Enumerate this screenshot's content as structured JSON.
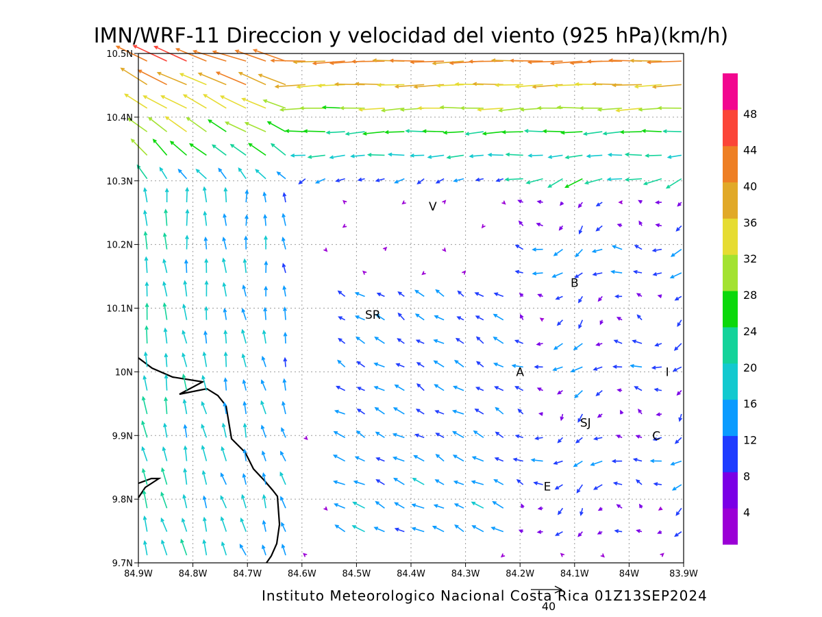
{
  "title": "IMN/WRF-11 Direccion y velocidad del viento (925 hPa)(km/h)",
  "footer": "Instituto Meteorologico Nacional Costa Rica 01Z13SEP2024",
  "reference_vector_label": "40",
  "chart_data": {
    "type": "vector-field",
    "title": "IMN/WRF-11 Direccion y velocidad del viento (925 hPa)(km/h)",
    "units": "km/h",
    "level": "925 hPa",
    "valid_time": "01Z13SEP2024",
    "xlim": [
      -84.9,
      -83.9
    ],
    "ylim": [
      9.7,
      10.5
    ],
    "x_ticks": [
      "84.9W",
      "84.8W",
      "84.7W",
      "84.6W",
      "84.5W",
      "84.4W",
      "84.3W",
      "84.2W",
      "84.1W",
      "84W",
      "83.9W"
    ],
    "y_ticks": [
      "9.7N",
      "9.8N",
      "9.9N",
      "10N",
      "10.1N",
      "10.2N",
      "10.3N",
      "10.4N",
      "10.5N"
    ],
    "grid": true,
    "colorbar": {
      "labels": [
        "4",
        "8",
        "12",
        "16",
        "20",
        "24",
        "28",
        "32",
        "36",
        "40",
        "44",
        "48"
      ],
      "colors": [
        "#9b00d6",
        "#7a00e6",
        "#1f3cff",
        "#0a9bff",
        "#12c9cf",
        "#13d39a",
        "#0bd80b",
        "#a3e231",
        "#e6dc32",
        "#e1a928",
        "#ee7f24",
        "#fb4538",
        "#f2078f"
      ]
    },
    "annotations": [
      {
        "text": "V",
        "lon": -84.36,
        "lat": 10.26
      },
      {
        "text": "B",
        "lon": -84.1,
        "lat": 10.14
      },
      {
        "text": "SR",
        "lon": -84.47,
        "lat": 10.09
      },
      {
        "text": "A",
        "lon": -84.2,
        "lat": 10.0
      },
      {
        "text": "I",
        "lon": -83.93,
        "lat": 10.0
      },
      {
        "text": "SJ",
        "lon": -84.08,
        "lat": 9.92
      },
      {
        "text": "C",
        "lon": -83.95,
        "lat": 9.9
      },
      {
        "text": "E",
        "lon": -84.15,
        "lat": 9.82
      }
    ]
  }
}
